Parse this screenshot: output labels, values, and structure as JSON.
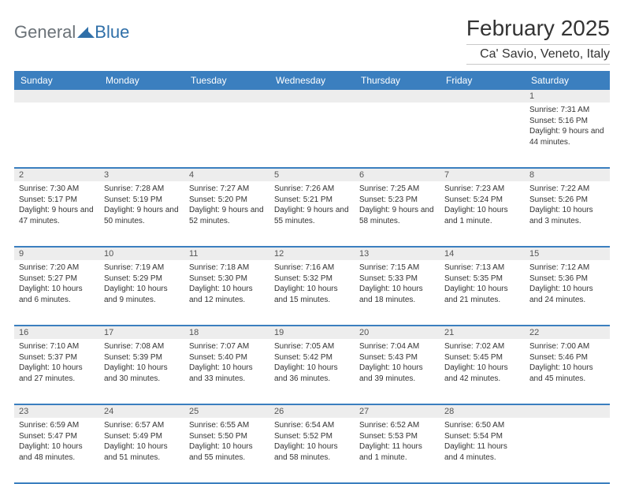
{
  "logo": {
    "general": "General",
    "blue": "Blue"
  },
  "title": "February 2025",
  "location": "Ca' Savio, Veneto, Italy",
  "colors": {
    "header_bg": "#3b7fbf",
    "header_text": "#ffffff",
    "daynum_bg": "#ededed",
    "border": "#3b7fbf",
    "text": "#333333",
    "logo_gray": "#6b7278",
    "logo_blue": "#2f6fa8"
  },
  "day_names": [
    "Sunday",
    "Monday",
    "Tuesday",
    "Wednesday",
    "Thursday",
    "Friday",
    "Saturday"
  ],
  "weeks": [
    {
      "nums": [
        "",
        "",
        "",
        "",
        "",
        "",
        "1"
      ],
      "cells": [
        null,
        null,
        null,
        null,
        null,
        null,
        {
          "sunrise": "Sunrise: 7:31 AM",
          "sunset": "Sunset: 5:16 PM",
          "daylight": "Daylight: 9 hours and 44 minutes."
        }
      ]
    },
    {
      "nums": [
        "2",
        "3",
        "4",
        "5",
        "6",
        "7",
        "8"
      ],
      "cells": [
        {
          "sunrise": "Sunrise: 7:30 AM",
          "sunset": "Sunset: 5:17 PM",
          "daylight": "Daylight: 9 hours and 47 minutes."
        },
        {
          "sunrise": "Sunrise: 7:28 AM",
          "sunset": "Sunset: 5:19 PM",
          "daylight": "Daylight: 9 hours and 50 minutes."
        },
        {
          "sunrise": "Sunrise: 7:27 AM",
          "sunset": "Sunset: 5:20 PM",
          "daylight": "Daylight: 9 hours and 52 minutes."
        },
        {
          "sunrise": "Sunrise: 7:26 AM",
          "sunset": "Sunset: 5:21 PM",
          "daylight": "Daylight: 9 hours and 55 minutes."
        },
        {
          "sunrise": "Sunrise: 7:25 AM",
          "sunset": "Sunset: 5:23 PM",
          "daylight": "Daylight: 9 hours and 58 minutes."
        },
        {
          "sunrise": "Sunrise: 7:23 AM",
          "sunset": "Sunset: 5:24 PM",
          "daylight": "Daylight: 10 hours and 1 minute."
        },
        {
          "sunrise": "Sunrise: 7:22 AM",
          "sunset": "Sunset: 5:26 PM",
          "daylight": "Daylight: 10 hours and 3 minutes."
        }
      ]
    },
    {
      "nums": [
        "9",
        "10",
        "11",
        "12",
        "13",
        "14",
        "15"
      ],
      "cells": [
        {
          "sunrise": "Sunrise: 7:20 AM",
          "sunset": "Sunset: 5:27 PM",
          "daylight": "Daylight: 10 hours and 6 minutes."
        },
        {
          "sunrise": "Sunrise: 7:19 AM",
          "sunset": "Sunset: 5:29 PM",
          "daylight": "Daylight: 10 hours and 9 minutes."
        },
        {
          "sunrise": "Sunrise: 7:18 AM",
          "sunset": "Sunset: 5:30 PM",
          "daylight": "Daylight: 10 hours and 12 minutes."
        },
        {
          "sunrise": "Sunrise: 7:16 AM",
          "sunset": "Sunset: 5:32 PM",
          "daylight": "Daylight: 10 hours and 15 minutes."
        },
        {
          "sunrise": "Sunrise: 7:15 AM",
          "sunset": "Sunset: 5:33 PM",
          "daylight": "Daylight: 10 hours and 18 minutes."
        },
        {
          "sunrise": "Sunrise: 7:13 AM",
          "sunset": "Sunset: 5:35 PM",
          "daylight": "Daylight: 10 hours and 21 minutes."
        },
        {
          "sunrise": "Sunrise: 7:12 AM",
          "sunset": "Sunset: 5:36 PM",
          "daylight": "Daylight: 10 hours and 24 minutes."
        }
      ]
    },
    {
      "nums": [
        "16",
        "17",
        "18",
        "19",
        "20",
        "21",
        "22"
      ],
      "cells": [
        {
          "sunrise": "Sunrise: 7:10 AM",
          "sunset": "Sunset: 5:37 PM",
          "daylight": "Daylight: 10 hours and 27 minutes."
        },
        {
          "sunrise": "Sunrise: 7:08 AM",
          "sunset": "Sunset: 5:39 PM",
          "daylight": "Daylight: 10 hours and 30 minutes."
        },
        {
          "sunrise": "Sunrise: 7:07 AM",
          "sunset": "Sunset: 5:40 PM",
          "daylight": "Daylight: 10 hours and 33 minutes."
        },
        {
          "sunrise": "Sunrise: 7:05 AM",
          "sunset": "Sunset: 5:42 PM",
          "daylight": "Daylight: 10 hours and 36 minutes."
        },
        {
          "sunrise": "Sunrise: 7:04 AM",
          "sunset": "Sunset: 5:43 PM",
          "daylight": "Daylight: 10 hours and 39 minutes."
        },
        {
          "sunrise": "Sunrise: 7:02 AM",
          "sunset": "Sunset: 5:45 PM",
          "daylight": "Daylight: 10 hours and 42 minutes."
        },
        {
          "sunrise": "Sunrise: 7:00 AM",
          "sunset": "Sunset: 5:46 PM",
          "daylight": "Daylight: 10 hours and 45 minutes."
        }
      ]
    },
    {
      "nums": [
        "23",
        "24",
        "25",
        "26",
        "27",
        "28",
        ""
      ],
      "cells": [
        {
          "sunrise": "Sunrise: 6:59 AM",
          "sunset": "Sunset: 5:47 PM",
          "daylight": "Daylight: 10 hours and 48 minutes."
        },
        {
          "sunrise": "Sunrise: 6:57 AM",
          "sunset": "Sunset: 5:49 PM",
          "daylight": "Daylight: 10 hours and 51 minutes."
        },
        {
          "sunrise": "Sunrise: 6:55 AM",
          "sunset": "Sunset: 5:50 PM",
          "daylight": "Daylight: 10 hours and 55 minutes."
        },
        {
          "sunrise": "Sunrise: 6:54 AM",
          "sunset": "Sunset: 5:52 PM",
          "daylight": "Daylight: 10 hours and 58 minutes."
        },
        {
          "sunrise": "Sunrise: 6:52 AM",
          "sunset": "Sunset: 5:53 PM",
          "daylight": "Daylight: 11 hours and 1 minute."
        },
        {
          "sunrise": "Sunrise: 6:50 AM",
          "sunset": "Sunset: 5:54 PM",
          "daylight": "Daylight: 11 hours and 4 minutes."
        },
        null
      ]
    }
  ]
}
